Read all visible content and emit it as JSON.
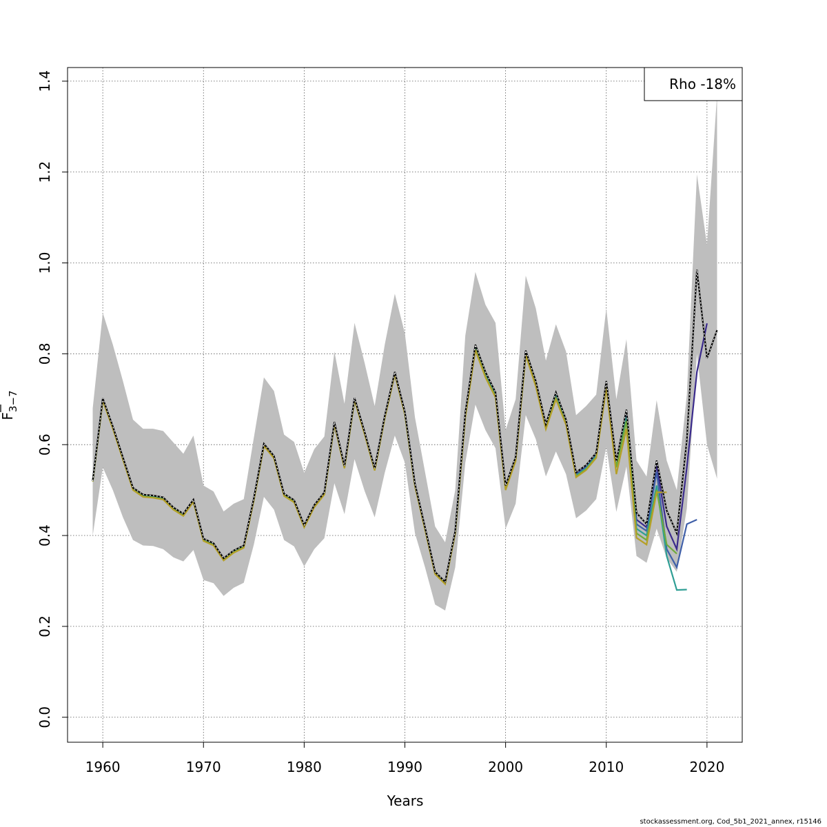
{
  "chart_data": {
    "type": "line",
    "xlabel": "Years",
    "ylabel": "F",
    "ylabel_subscript": "3−7",
    "xlim": [
      1956.5,
      2023.5
    ],
    "ylim": [
      -0.055,
      1.43
    ],
    "x_ticks": [
      1960,
      1970,
      1980,
      1990,
      2000,
      2010,
      2020
    ],
    "y_ticks": [
      0.0,
      0.2,
      0.4,
      0.6,
      0.8,
      1.0,
      1.2,
      1.4
    ],
    "x_tick_labels": [
      "1960",
      "1970",
      "1980",
      "1990",
      "2000",
      "2010",
      "2020"
    ],
    "y_tick_labels": [
      "0.0",
      "0.2",
      "0.4",
      "0.6",
      "0.8",
      "1.0",
      "1.2",
      "1.4"
    ],
    "grid": true,
    "legend": {
      "placement": "top-right",
      "text": "Rho -18%"
    },
    "band": {
      "color": "#bebebe",
      "x": [
        1959,
        1960,
        1961,
        1962,
        1963,
        1964,
        1965,
        1966,
        1967,
        1968,
        1969,
        1970,
        1971,
        1972,
        1973,
        1974,
        1975,
        1976,
        1977,
        1978,
        1979,
        1980,
        1981,
        1982,
        1983,
        1984,
        1985,
        1986,
        1987,
        1988,
        1989,
        1990,
        1991,
        1992,
        1993,
        1994,
        1995,
        1996,
        1997,
        1998,
        1999,
        2000,
        2001,
        2002,
        2003,
        2004,
        2005,
        2006,
        2007,
        2008,
        2009,
        2010,
        2011,
        2012,
        2013,
        2014,
        2015,
        2016,
        2017,
        2018,
        2019,
        2020,
        2021
      ],
      "upper": [
        0.68,
        0.89,
        0.82,
        0.74,
        0.655,
        0.635,
        0.635,
        0.63,
        0.605,
        0.58,
        0.62,
        0.51,
        0.497,
        0.453,
        0.47,
        0.48,
        0.615,
        0.748,
        0.718,
        0.622,
        0.606,
        0.538,
        0.59,
        0.618,
        0.805,
        0.69,
        0.868,
        0.78,
        0.685,
        0.82,
        0.932,
        0.845,
        0.66,
        0.54,
        0.42,
        0.385,
        0.5,
        0.84,
        0.98,
        0.908,
        0.868,
        0.632,
        0.7,
        0.972,
        0.9,
        0.785,
        0.865,
        0.805,
        0.665,
        0.685,
        0.71,
        0.9,
        0.7,
        0.832,
        0.565,
        0.53,
        0.698,
        0.565,
        0.5,
        0.71,
        1.195,
        1.04,
        1.37
      ],
      "lower": [
        0.4,
        0.55,
        0.5,
        0.44,
        0.39,
        0.378,
        0.377,
        0.37,
        0.352,
        0.343,
        0.368,
        0.302,
        0.295,
        0.267,
        0.285,
        0.296,
        0.38,
        0.485,
        0.457,
        0.39,
        0.376,
        0.332,
        0.37,
        0.394,
        0.515,
        0.447,
        0.568,
        0.498,
        0.44,
        0.538,
        0.62,
        0.56,
        0.405,
        0.33,
        0.248,
        0.235,
        0.33,
        0.56,
        0.688,
        0.632,
        0.592,
        0.415,
        0.47,
        0.665,
        0.612,
        0.53,
        0.585,
        0.535,
        0.438,
        0.455,
        0.48,
        0.595,
        0.452,
        0.552,
        0.355,
        0.34,
        0.415,
        0.35,
        0.32,
        0.46,
        0.8,
        0.6,
        0.525
      ]
    },
    "series": [
      {
        "color": "#000000",
        "dashed": true,
        "x": [
          1959,
          1960,
          1961,
          1962,
          1963,
          1964,
          1965,
          1966,
          1967,
          1968,
          1969,
          1970,
          1971,
          1972,
          1973,
          1974,
          1975,
          1976,
          1977,
          1978,
          1979,
          1980,
          1981,
          1982,
          1983,
          1984,
          1985,
          1986,
          1987,
          1988,
          1989,
          1990,
          1991,
          1992,
          1993,
          1994,
          1995,
          1996,
          1997,
          1998,
          1999,
          2000,
          2001,
          2002,
          2003,
          2004,
          2005,
          2006,
          2007,
          2008,
          2009,
          2010,
          2011,
          2012,
          2013,
          2014,
          2015,
          2016,
          2017,
          2018,
          2019,
          2020,
          2021
        ],
        "values": [
          0.52,
          0.702,
          0.64,
          0.572,
          0.505,
          0.49,
          0.488,
          0.484,
          0.462,
          0.448,
          0.479,
          0.393,
          0.383,
          0.35,
          0.367,
          0.378,
          0.482,
          0.602,
          0.575,
          0.492,
          0.478,
          0.423,
          0.467,
          0.495,
          0.65,
          0.553,
          0.703,
          0.628,
          0.548,
          0.663,
          0.76,
          0.672,
          0.514,
          0.418,
          0.32,
          0.298,
          0.41,
          0.67,
          0.82,
          0.76,
          0.715,
          0.51,
          0.573,
          0.807,
          0.74,
          0.645,
          0.715,
          0.655,
          0.539,
          0.555,
          0.582,
          0.74,
          0.563,
          0.677,
          0.45,
          0.425,
          0.565,
          0.455,
          0.405,
          0.61,
          0.985,
          0.79,
          0.852
        ]
      },
      {
        "color": "#3a2a8c",
        "x": [
          1959,
          1960,
          1961,
          1962,
          1963,
          1964,
          1965,
          1966,
          1967,
          1968,
          1969,
          1970,
          1971,
          1972,
          1973,
          1974,
          1975,
          1976,
          1977,
          1978,
          1979,
          1980,
          1981,
          1982,
          1983,
          1984,
          1985,
          1986,
          1987,
          1988,
          1989,
          1990,
          1991,
          1992,
          1993,
          1994,
          1995,
          1996,
          1997,
          1998,
          1999,
          2000,
          2001,
          2002,
          2003,
          2004,
          2005,
          2006,
          2007,
          2008,
          2009,
          2010,
          2011,
          2012,
          2013,
          2014,
          2015,
          2016,
          2017,
          2018,
          2019,
          2020
        ],
        "values": [
          0.52,
          0.701,
          0.639,
          0.571,
          0.504,
          0.489,
          0.487,
          0.483,
          0.461,
          0.447,
          0.478,
          0.392,
          0.382,
          0.349,
          0.366,
          0.377,
          0.481,
          0.601,
          0.574,
          0.491,
          0.477,
          0.422,
          0.466,
          0.494,
          0.649,
          0.552,
          0.702,
          0.627,
          0.547,
          0.662,
          0.759,
          0.671,
          0.513,
          0.417,
          0.319,
          0.297,
          0.409,
          0.668,
          0.818,
          0.757,
          0.713,
          0.508,
          0.571,
          0.805,
          0.737,
          0.642,
          0.712,
          0.652,
          0.536,
          0.552,
          0.579,
          0.737,
          0.56,
          0.672,
          0.435,
          0.418,
          0.555,
          0.42,
          0.37,
          0.55,
          0.76,
          0.867
        ]
      },
      {
        "color": "#3f5fa8",
        "x": [
          1959,
          1960,
          1961,
          1962,
          1963,
          1964,
          1965,
          1966,
          1967,
          1968,
          1969,
          1970,
          1971,
          1972,
          1973,
          1974,
          1975,
          1976,
          1977,
          1978,
          1979,
          1980,
          1981,
          1982,
          1983,
          1984,
          1985,
          1986,
          1987,
          1988,
          1989,
          1990,
          1991,
          1992,
          1993,
          1994,
          1995,
          1996,
          1997,
          1998,
          1999,
          2000,
          2001,
          2002,
          2003,
          2004,
          2005,
          2006,
          2007,
          2008,
          2009,
          2010,
          2011,
          2012,
          2013,
          2014,
          2015,
          2016,
          2017,
          2018,
          2019
        ],
        "values": [
          0.52,
          0.7,
          0.638,
          0.57,
          0.503,
          0.488,
          0.486,
          0.482,
          0.46,
          0.446,
          0.477,
          0.391,
          0.381,
          0.348,
          0.365,
          0.376,
          0.48,
          0.6,
          0.573,
          0.49,
          0.476,
          0.421,
          0.465,
          0.493,
          0.648,
          0.551,
          0.701,
          0.626,
          0.546,
          0.661,
          0.758,
          0.67,
          0.512,
          0.416,
          0.318,
          0.296,
          0.408,
          0.666,
          0.815,
          0.754,
          0.71,
          0.506,
          0.569,
          0.803,
          0.734,
          0.64,
          0.708,
          0.65,
          0.534,
          0.55,
          0.577,
          0.734,
          0.557,
          0.668,
          0.425,
          0.41,
          0.54,
          0.37,
          0.33,
          0.425,
          0.435
        ]
      },
      {
        "color": "#2e9e94",
        "x": [
          1959,
          1960,
          1961,
          1962,
          1963,
          1964,
          1965,
          1966,
          1967,
          1968,
          1969,
          1970,
          1971,
          1972,
          1973,
          1974,
          1975,
          1976,
          1977,
          1978,
          1979,
          1980,
          1981,
          1982,
          1983,
          1984,
          1985,
          1986,
          1987,
          1988,
          1989,
          1990,
          1991,
          1992,
          1993,
          1994,
          1995,
          1996,
          1997,
          1998,
          1999,
          2000,
          2001,
          2002,
          2003,
          2004,
          2005,
          2006,
          2007,
          2008,
          2009,
          2010,
          2011,
          2012,
          2013,
          2014,
          2015,
          2016,
          2017,
          2018
        ],
        "values": [
          0.519,
          0.699,
          0.637,
          0.569,
          0.502,
          0.487,
          0.485,
          0.481,
          0.459,
          0.445,
          0.476,
          0.39,
          0.38,
          0.347,
          0.364,
          0.375,
          0.479,
          0.599,
          0.572,
          0.489,
          0.475,
          0.42,
          0.464,
          0.492,
          0.647,
          0.55,
          0.7,
          0.625,
          0.545,
          0.66,
          0.757,
          0.669,
          0.511,
          0.415,
          0.317,
          0.295,
          0.407,
          0.664,
          0.812,
          0.752,
          0.708,
          0.504,
          0.568,
          0.801,
          0.732,
          0.638,
          0.705,
          0.648,
          0.532,
          0.548,
          0.575,
          0.731,
          0.554,
          0.66,
          0.415,
          0.4,
          0.51,
          0.355,
          0.28,
          0.281
        ]
      },
      {
        "color": "#6faa3c",
        "x": [
          1959,
          1960,
          1961,
          1962,
          1963,
          1964,
          1965,
          1966,
          1967,
          1968,
          1969,
          1970,
          1971,
          1972,
          1973,
          1974,
          1975,
          1976,
          1977,
          1978,
          1979,
          1980,
          1981,
          1982,
          1983,
          1984,
          1985,
          1986,
          1987,
          1988,
          1989,
          1990,
          1991,
          1992,
          1993,
          1994,
          1995,
          1996,
          1997,
          1998,
          1999,
          2000,
          2001,
          2002,
          2003,
          2004,
          2005,
          2006,
          2007,
          2008,
          2009,
          2010,
          2011,
          2012,
          2013,
          2014,
          2015,
          2016,
          2017
        ],
        "values": [
          0.519,
          0.698,
          0.636,
          0.568,
          0.501,
          0.486,
          0.484,
          0.48,
          0.458,
          0.444,
          0.475,
          0.389,
          0.379,
          0.346,
          0.363,
          0.374,
          0.478,
          0.598,
          0.571,
          0.488,
          0.474,
          0.419,
          0.463,
          0.491,
          0.646,
          0.549,
          0.699,
          0.624,
          0.544,
          0.659,
          0.756,
          0.668,
          0.51,
          0.414,
          0.316,
          0.294,
          0.406,
          0.662,
          0.81,
          0.75,
          0.706,
          0.502,
          0.566,
          0.799,
          0.73,
          0.636,
          0.702,
          0.646,
          0.53,
          0.546,
          0.573,
          0.728,
          0.55,
          0.652,
          0.405,
          0.39,
          0.5,
          0.38,
          0.36
        ]
      },
      {
        "color": "#b5a028",
        "x": [
          1959,
          1960,
          1961,
          1962,
          1963,
          1964,
          1965,
          1966,
          1967,
          1968,
          1969,
          1970,
          1971,
          1972,
          1973,
          1974,
          1975,
          1976,
          1977,
          1978,
          1979,
          1980,
          1981,
          1982,
          1983,
          1984,
          1985,
          1986,
          1987,
          1988,
          1989,
          1990,
          1991,
          1992,
          1993,
          1994,
          1995,
          1996,
          1997,
          1998,
          1999,
          2000,
          2001,
          2002,
          2003,
          2004,
          2005,
          2006,
          2007,
          2008,
          2009,
          2010,
          2011,
          2012,
          2013,
          2014,
          2015,
          2016
        ],
        "values": [
          0.519,
          0.697,
          0.635,
          0.567,
          0.5,
          0.485,
          0.483,
          0.479,
          0.457,
          0.443,
          0.474,
          0.388,
          0.378,
          0.345,
          0.362,
          0.373,
          0.477,
          0.597,
          0.57,
          0.487,
          0.473,
          0.418,
          0.462,
          0.49,
          0.645,
          0.548,
          0.698,
          0.623,
          0.543,
          0.658,
          0.755,
          0.667,
          0.509,
          0.413,
          0.315,
          0.293,
          0.405,
          0.66,
          0.808,
          0.748,
          0.704,
          0.5,
          0.564,
          0.797,
          0.728,
          0.634,
          0.7,
          0.644,
          0.528,
          0.544,
          0.571,
          0.725,
          0.535,
          0.635,
          0.395,
          0.38,
          0.495,
          0.495
        ]
      }
    ]
  },
  "footer": "stockassessment.org, Cod_5b1_2021_annex, r15146"
}
